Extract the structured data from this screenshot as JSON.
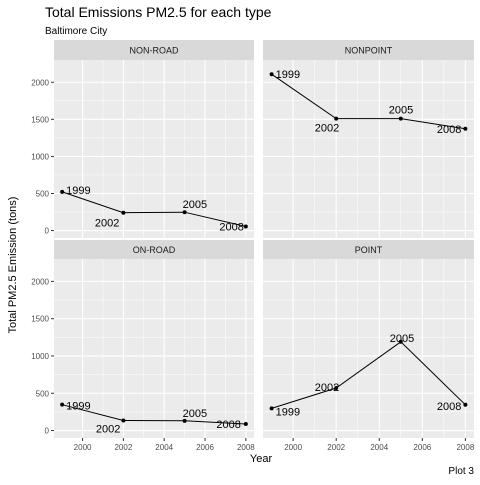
{
  "title": "Total Emissions PM2.5 for each type",
  "subtitle": "Baltimore City",
  "caption": "Plot 3",
  "chart_data": {
    "type": "line",
    "facet": "wrap",
    "title": "Total Emissions PM2.5 for each type",
    "subtitle": "Baltimore City",
    "xlabel": "Year",
    "ylabel": "Total PM2.5 Emission (tons)",
    "xlim": [
      1998.6,
      2008.4
    ],
    "ylim": [
      -100,
      2300
    ],
    "x_ticks": [
      2000,
      2002,
      2004,
      2006,
      2008
    ],
    "y_ticks": [
      0,
      500,
      1000,
      1500,
      2000
    ],
    "grid": true,
    "panels": [
      {
        "name": "NON-ROAD",
        "x": [
          1999,
          2002,
          2005,
          2008
        ],
        "values": [
          522,
          241,
          248,
          55
        ]
      },
      {
        "name": "NONPOINT",
        "x": [
          1999,
          2002,
          2005,
          2008
        ],
        "values": [
          2108,
          1510,
          1510,
          1373
        ]
      },
      {
        "name": "ON-ROAD",
        "x": [
          1999,
          2002,
          2005,
          2008
        ],
        "values": [
          347,
          134,
          130,
          88
        ]
      },
      {
        "name": "POINT",
        "x": [
          1999,
          2002,
          2005,
          2008
        ],
        "values": [
          297,
          570,
          1190,
          345
        ]
      }
    ],
    "point_labels": [
      "1999",
      "2002",
      "2005",
      "2008"
    ]
  }
}
